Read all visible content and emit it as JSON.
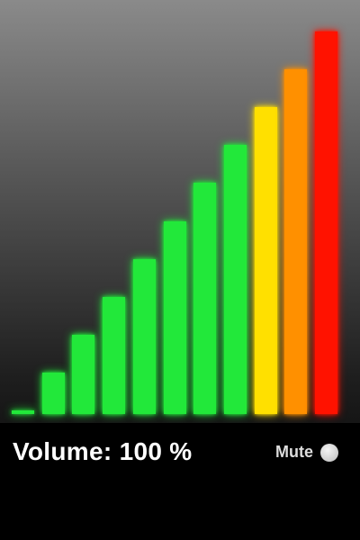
{
  "volume": {
    "label": "Volume:",
    "value": "100",
    "unit": "%",
    "level_percent": 100
  },
  "mute": {
    "label": "Mute",
    "is_on": false
  },
  "meter": {
    "bar_count": 11,
    "bars": [
      {
        "level": 1,
        "color": "#22e83a"
      },
      {
        "level": 2,
        "color": "#22e83a"
      },
      {
        "level": 3,
        "color": "#22e83a"
      },
      {
        "level": 4,
        "color": "#22e83a"
      },
      {
        "level": 5,
        "color": "#22e83a"
      },
      {
        "level": 6,
        "color": "#22e83a"
      },
      {
        "level": 7,
        "color": "#22e83a"
      },
      {
        "level": 8,
        "color": "#22e83a"
      },
      {
        "level": 9,
        "color": "#ffe000"
      },
      {
        "level": 10,
        "color": "#ff9000"
      },
      {
        "level": 11,
        "color": "#ff1200"
      }
    ]
  }
}
